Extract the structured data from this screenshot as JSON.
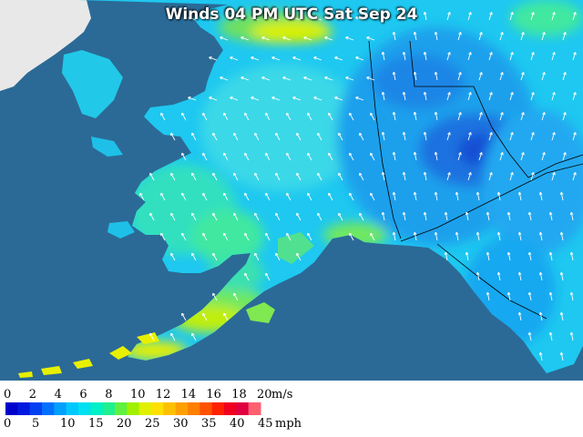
{
  "title": "Winds 04 PM UTC Sat Sep 24",
  "legend": {
    "ms_ticks": [
      "0",
      "2",
      "4",
      "6",
      "8",
      "10",
      "12",
      "14",
      "16",
      "18",
      "20"
    ],
    "ms_unit": "m/s",
    "mph_ticks": [
      "0",
      "5",
      "10",
      "15",
      "20",
      "25",
      "30",
      "35",
      "40",
      "45"
    ],
    "mph_unit": "mph",
    "colors": [
      "#0000cc",
      "#0018e0",
      "#0040f0",
      "#0070ff",
      "#00a0ff",
      "#00c8ff",
      "#00e0f0",
      "#00f0c8",
      "#20f090",
      "#60f040",
      "#a0f000",
      "#e0f000",
      "#ffe000",
      "#ffc000",
      "#ffa000",
      "#ff8000",
      "#ff5000",
      "#ff2000",
      "#f00020",
      "#e00040",
      "#ff6070"
    ]
  },
  "colors": {
    "ocean": "#2b6a96",
    "canada_land": "#e8e8e8"
  }
}
